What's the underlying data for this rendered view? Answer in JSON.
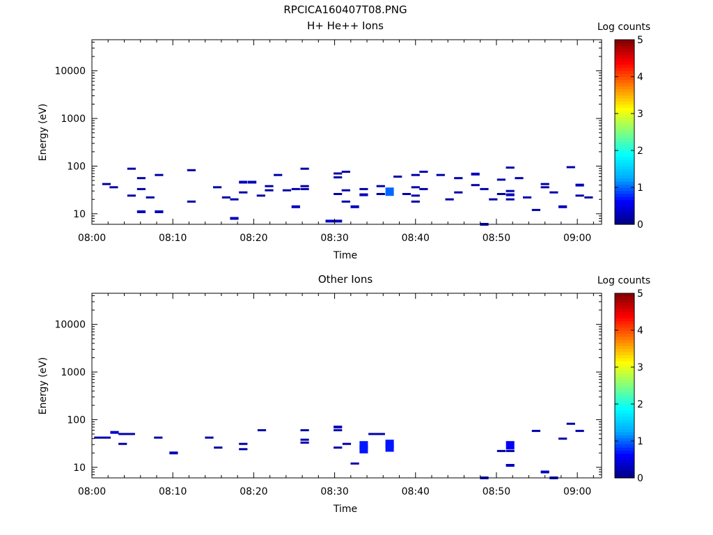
{
  "figure_title": "RPCICA160407T08.PNG",
  "colorbar": {
    "label": "Log counts",
    "ticks": [
      0,
      1,
      2,
      3,
      4,
      5
    ],
    "range": [
      0,
      5
    ],
    "colormap": [
      "#000080",
      "#0000ff",
      "#00aaff",
      "#00ffff",
      "#80ff80",
      "#ffff00",
      "#ff8000",
      "#ff0000",
      "#800000"
    ]
  },
  "chart_data": [
    {
      "type": "heatmap",
      "title": "H+ He++ Ions",
      "xlabel": "Time",
      "ylabel": "Energy (eV)",
      "x_unit": "minutes after 08:00",
      "x_range": [
        0,
        63
      ],
      "x_ticks": [
        "08:00",
        "08:10",
        "08:20",
        "08:30",
        "08:40",
        "08:50",
        "09:00"
      ],
      "y_scale": "log",
      "y_range": [
        6,
        45000
      ],
      "y_ticks": [
        "10",
        "100",
        "1000",
        "10000"
      ],
      "cells": [
        {
          "t": 1.8,
          "e": 42,
          "v": 0.2
        },
        {
          "t": 2.7,
          "e": 36,
          "v": 0.2
        },
        {
          "t": 4.9,
          "e": 88,
          "v": 0.2
        },
        {
          "t": 4.9,
          "e": 24,
          "v": 0.2
        },
        {
          "t": 6.1,
          "e": 56,
          "v": 0.2
        },
        {
          "t": 6.1,
          "e": 33,
          "v": 0.2
        },
        {
          "t": 6.1,
          "e": 11,
          "v": 0.3
        },
        {
          "t": 7.2,
          "e": 22,
          "v": 0.2
        },
        {
          "t": 8.3,
          "e": 65,
          "v": 0.2
        },
        {
          "t": 8.3,
          "e": 11,
          "v": 0.3
        },
        {
          "t": 12.3,
          "e": 82,
          "v": 0.2
        },
        {
          "t": 12.3,
          "e": 18,
          "v": 0.2
        },
        {
          "t": 15.5,
          "e": 36,
          "v": 0.2
        },
        {
          "t": 16.6,
          "e": 22,
          "v": 0.2
        },
        {
          "t": 17.6,
          "e": 20,
          "v": 0.2
        },
        {
          "t": 17.6,
          "e": 8,
          "v": 0.3
        },
        {
          "t": 18.7,
          "e": 46,
          "v": 0.3
        },
        {
          "t": 18.7,
          "e": 28,
          "v": 0.2
        },
        {
          "t": 19.8,
          "e": 46,
          "v": 0.3
        },
        {
          "t": 20.9,
          "e": 24,
          "v": 0.2
        },
        {
          "t": 21.9,
          "e": 38,
          "v": 0.2
        },
        {
          "t": 21.9,
          "e": 31,
          "v": 0.2
        },
        {
          "t": 23.0,
          "e": 65,
          "v": 0.2
        },
        {
          "t": 24.1,
          "e": 31,
          "v": 0.2
        },
        {
          "t": 25.2,
          "e": 33,
          "v": 0.2
        },
        {
          "t": 25.2,
          "e": 14,
          "v": 0.3
        },
        {
          "t": 26.3,
          "e": 88,
          "v": 0.2
        },
        {
          "t": 26.3,
          "e": 38,
          "v": 0.2
        },
        {
          "t": 26.3,
          "e": 33,
          "v": 0.2
        },
        {
          "t": 29.4,
          "e": 7,
          "v": 0.3
        },
        {
          "t": 30.4,
          "e": 7,
          "v": 0.3
        },
        {
          "t": 30.4,
          "e": 70,
          "v": 0.2
        },
        {
          "t": 30.4,
          "e": 58,
          "v": 0.2
        },
        {
          "t": 30.4,
          "e": 26,
          "v": 0.2
        },
        {
          "t": 31.4,
          "e": 76,
          "v": 0.2
        },
        {
          "t": 31.4,
          "e": 31,
          "v": 0.2
        },
        {
          "t": 31.4,
          "e": 18,
          "v": 0.2
        },
        {
          "t": 32.5,
          "e": 14,
          "v": 0.3
        },
        {
          "t": 33.6,
          "e": 33,
          "v": 0.2
        },
        {
          "t": 33.6,
          "e": 25,
          "v": 0.3
        },
        {
          "t": 35.7,
          "e": 38,
          "v": 0.2
        },
        {
          "t": 35.7,
          "e": 26,
          "v": 0.2
        },
        {
          "t": 36.8,
          "e": 29,
          "v": 1.0
        },
        {
          "t": 37.8,
          "e": 60,
          "v": 0.2
        },
        {
          "t": 38.9,
          "e": 26,
          "v": 0.2
        },
        {
          "t": 40.0,
          "e": 65,
          "v": 0.2
        },
        {
          "t": 40.0,
          "e": 36,
          "v": 0.2
        },
        {
          "t": 40.0,
          "e": 24,
          "v": 0.2
        },
        {
          "t": 40.0,
          "e": 18,
          "v": 0.2
        },
        {
          "t": 41.0,
          "e": 76,
          "v": 0.2
        },
        {
          "t": 41.0,
          "e": 33,
          "v": 0.2
        },
        {
          "t": 43.1,
          "e": 65,
          "v": 0.2
        },
        {
          "t": 44.2,
          "e": 20,
          "v": 0.2
        },
        {
          "t": 45.3,
          "e": 56,
          "v": 0.2
        },
        {
          "t": 45.3,
          "e": 28,
          "v": 0.2
        },
        {
          "t": 47.4,
          "e": 68,
          "v": 0.3
        },
        {
          "t": 47.4,
          "e": 40,
          "v": 0.2
        },
        {
          "t": 48.5,
          "e": 33,
          "v": 0.2
        },
        {
          "t": 48.5,
          "e": 6,
          "v": 0.3
        },
        {
          "t": 49.6,
          "e": 20,
          "v": 0.2
        },
        {
          "t": 50.6,
          "e": 52,
          "v": 0.2
        },
        {
          "t": 50.6,
          "e": 26,
          "v": 0.2
        },
        {
          "t": 51.7,
          "e": 93,
          "v": 0.2
        },
        {
          "t": 51.7,
          "e": 30,
          "v": 0.2
        },
        {
          "t": 51.7,
          "e": 25,
          "v": 0.3
        },
        {
          "t": 51.7,
          "e": 20,
          "v": 0.2
        },
        {
          "t": 52.8,
          "e": 56,
          "v": 0.2
        },
        {
          "t": 53.8,
          "e": 22,
          "v": 0.2
        },
        {
          "t": 54.9,
          "e": 12,
          "v": 0.2
        },
        {
          "t": 56.0,
          "e": 42,
          "v": 0.2
        },
        {
          "t": 56.0,
          "e": 36,
          "v": 0.2
        },
        {
          "t": 57.1,
          "e": 28,
          "v": 0.2
        },
        {
          "t": 58.2,
          "e": 14,
          "v": 0.3
        },
        {
          "t": 59.2,
          "e": 95,
          "v": 0.2
        },
        {
          "t": 60.3,
          "e": 40,
          "v": 0.3
        },
        {
          "t": 60.3,
          "e": 24,
          "v": 0.2
        },
        {
          "t": 61.4,
          "e": 22,
          "v": 0.2
        }
      ]
    },
    {
      "type": "heatmap",
      "title": "Other Ions",
      "xlabel": "Time",
      "ylabel": "Energy (eV)",
      "x_unit": "minutes after 08:00",
      "x_range": [
        0,
        63
      ],
      "x_ticks": [
        "08:00",
        "08:10",
        "08:20",
        "08:30",
        "08:40",
        "08:50",
        "09:00"
      ],
      "y_scale": "log",
      "y_range": [
        6,
        45000
      ],
      "y_ticks": [
        "10",
        "100",
        "1000",
        "10000"
      ],
      "cells": [
        {
          "t": 0.8,
          "e": 42,
          "v": 0.2
        },
        {
          "t": 1.8,
          "e": 42,
          "v": 0.2
        },
        {
          "t": 2.8,
          "e": 54,
          "v": 0.4
        },
        {
          "t": 3.8,
          "e": 50,
          "v": 0.2
        },
        {
          "t": 3.8,
          "e": 31,
          "v": 0.2
        },
        {
          "t": 4.8,
          "e": 50,
          "v": 0.2
        },
        {
          "t": 8.2,
          "e": 42,
          "v": 0.2
        },
        {
          "t": 10.1,
          "e": 20,
          "v": 0.3
        },
        {
          "t": 14.5,
          "e": 42,
          "v": 0.2
        },
        {
          "t": 15.6,
          "e": 26,
          "v": 0.2
        },
        {
          "t": 18.7,
          "e": 31,
          "v": 0.2
        },
        {
          "t": 18.7,
          "e": 24,
          "v": 0.2
        },
        {
          "t": 21.0,
          "e": 60,
          "v": 0.2
        },
        {
          "t": 26.3,
          "e": 60,
          "v": 0.2
        },
        {
          "t": 26.3,
          "e": 38,
          "v": 0.2
        },
        {
          "t": 26.3,
          "e": 33,
          "v": 0.2
        },
        {
          "t": 30.4,
          "e": 70,
          "v": 0.3
        },
        {
          "t": 30.4,
          "e": 60,
          "v": 0.2
        },
        {
          "t": 30.4,
          "e": 26,
          "v": 0.2
        },
        {
          "t": 31.5,
          "e": 31,
          "v": 0.2
        },
        {
          "t": 32.5,
          "e": 12,
          "v": 0.2
        },
        {
          "t": 33.6,
          "e": 29,
          "v": 0.7
        },
        {
          "t": 33.6,
          "e": 24,
          "v": 0.7
        },
        {
          "t": 34.7,
          "e": 50,
          "v": 0.2
        },
        {
          "t": 35.7,
          "e": 50,
          "v": 0.2
        },
        {
          "t": 36.8,
          "e": 31,
          "v": 0.7
        },
        {
          "t": 36.8,
          "e": 26,
          "v": 0.7
        },
        {
          "t": 48.5,
          "e": 6,
          "v": 0.3
        },
        {
          "t": 50.6,
          "e": 22,
          "v": 0.2
        },
        {
          "t": 51.7,
          "e": 22,
          "v": 0.2
        },
        {
          "t": 51.7,
          "e": 29,
          "v": 0.6
        },
        {
          "t": 51.7,
          "e": 11,
          "v": 0.3
        },
        {
          "t": 54.9,
          "e": 58,
          "v": 0.2
        },
        {
          "t": 56.0,
          "e": 8,
          "v": 0.3
        },
        {
          "t": 57.1,
          "e": 6,
          "v": 0.3
        },
        {
          "t": 58.2,
          "e": 40,
          "v": 0.2
        },
        {
          "t": 59.2,
          "e": 82,
          "v": 0.2
        },
        {
          "t": 60.3,
          "e": 58,
          "v": 0.2
        }
      ]
    }
  ]
}
